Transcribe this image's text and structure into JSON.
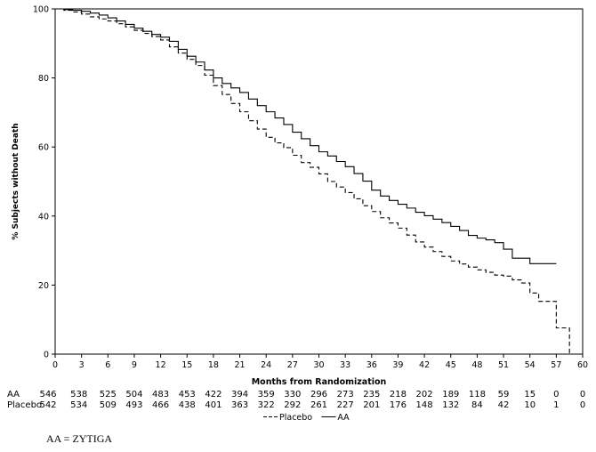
{
  "chart_data": {
    "type": "line",
    "title": "",
    "xlabel": "Months from Randomization",
    "ylabel": "% Subjects without Death",
    "xlim": [
      0,
      60
    ],
    "ylim": [
      0,
      100
    ],
    "xticks": [
      0,
      3,
      6,
      9,
      12,
      15,
      18,
      21,
      24,
      27,
      30,
      33,
      36,
      39,
      42,
      45,
      48,
      51,
      54,
      57,
      60
    ],
    "yticks": [
      0,
      20,
      40,
      60,
      80,
      100
    ],
    "grid": false,
    "legend": {
      "placement": "bottom-center",
      "entries": [
        "Placebo",
        "AA"
      ]
    },
    "series": [
      {
        "name": "AA",
        "style": "solid",
        "x": [
          0,
          1,
          2,
          3,
          4,
          5,
          6,
          7,
          8,
          9,
          10,
          11,
          12,
          13,
          14,
          15,
          16,
          17,
          18,
          19,
          20,
          21,
          22,
          23,
          24,
          25,
          26,
          27,
          28,
          29,
          30,
          31,
          32,
          33,
          34,
          35,
          36,
          37,
          38,
          39,
          40,
          41,
          42,
          43,
          44,
          45,
          46,
          47,
          48,
          49,
          50,
          51,
          52,
          53,
          54,
          55,
          56,
          57
        ],
        "y": [
          100,
          99.8,
          99.6,
          99.3,
          98.8,
          98.2,
          97.4,
          96.5,
          95.5,
          94.4,
          93.5,
          92.6,
          91.8,
          90.6,
          88.3,
          86.3,
          84.6,
          82.3,
          80.0,
          78.4,
          77.1,
          75.8,
          73.9,
          72.0,
          70.2,
          68.4,
          66.5,
          64.3,
          62.4,
          60.4,
          58.6,
          57.4,
          55.8,
          54.3,
          52.3,
          50.1,
          47.5,
          45.8,
          44.5,
          43.4,
          42.3,
          41.1,
          40.1,
          39.1,
          38.1,
          37.0,
          35.8,
          34.4,
          33.6,
          33.1,
          32.3,
          30.4,
          27.8,
          27.8,
          26.2,
          26.2,
          26.2,
          26.2
        ]
      },
      {
        "name": "Placebo",
        "style": "dashed",
        "x": [
          0,
          1,
          2,
          3,
          4,
          5,
          6,
          7,
          8,
          9,
          10,
          11,
          12,
          13,
          14,
          15,
          16,
          17,
          18,
          19,
          20,
          21,
          22,
          23,
          24,
          25,
          26,
          27,
          28,
          29,
          30,
          31,
          32,
          33,
          34,
          35,
          36,
          37,
          38,
          39,
          40,
          41,
          42,
          43,
          44,
          45,
          46,
          47,
          48,
          49,
          50,
          51,
          52,
          53,
          54,
          55,
          56,
          57,
          58,
          58.5
        ],
        "y": [
          100,
          99.6,
          99.1,
          98.5,
          97.7,
          97.1,
          96.5,
          95.7,
          94.8,
          93.8,
          92.9,
          92.0,
          91.0,
          89.0,
          87.2,
          85.4,
          83.6,
          80.8,
          77.8,
          75.2,
          72.6,
          70.2,
          67.6,
          65.2,
          62.8,
          61.2,
          59.8,
          57.6,
          55.5,
          54.1,
          52.2,
          50.0,
          48.4,
          46.8,
          45.0,
          43.0,
          41.3,
          39.5,
          38.0,
          36.5,
          34.5,
          32.5,
          31.0,
          29.7,
          28.3,
          27.0,
          26.1,
          25.2,
          24.4,
          23.7,
          22.9,
          22.6,
          21.5,
          20.6,
          17.7,
          15.3,
          15.3,
          7.6,
          7.6,
          0
        ]
      }
    ],
    "risk_table": {
      "times": [
        0,
        3,
        6,
        9,
        12,
        15,
        18,
        21,
        24,
        27,
        30,
        33,
        36,
        39,
        42,
        45,
        48,
        51,
        54,
        57,
        60
      ],
      "rows": [
        {
          "label": "AA",
          "values": [
            546,
            538,
            525,
            504,
            483,
            453,
            422,
            394,
            359,
            330,
            296,
            273,
            235,
            218,
            202,
            189,
            118,
            59,
            15,
            0,
            0
          ]
        },
        {
          "label": "Placebo",
          "values": [
            542,
            534,
            509,
            493,
            466,
            438,
            401,
            363,
            322,
            292,
            261,
            227,
            201,
            176,
            148,
            132,
            84,
            42,
            10,
            1,
            0
          ]
        }
      ]
    }
  },
  "footnote": "AA = ZYTIGA"
}
